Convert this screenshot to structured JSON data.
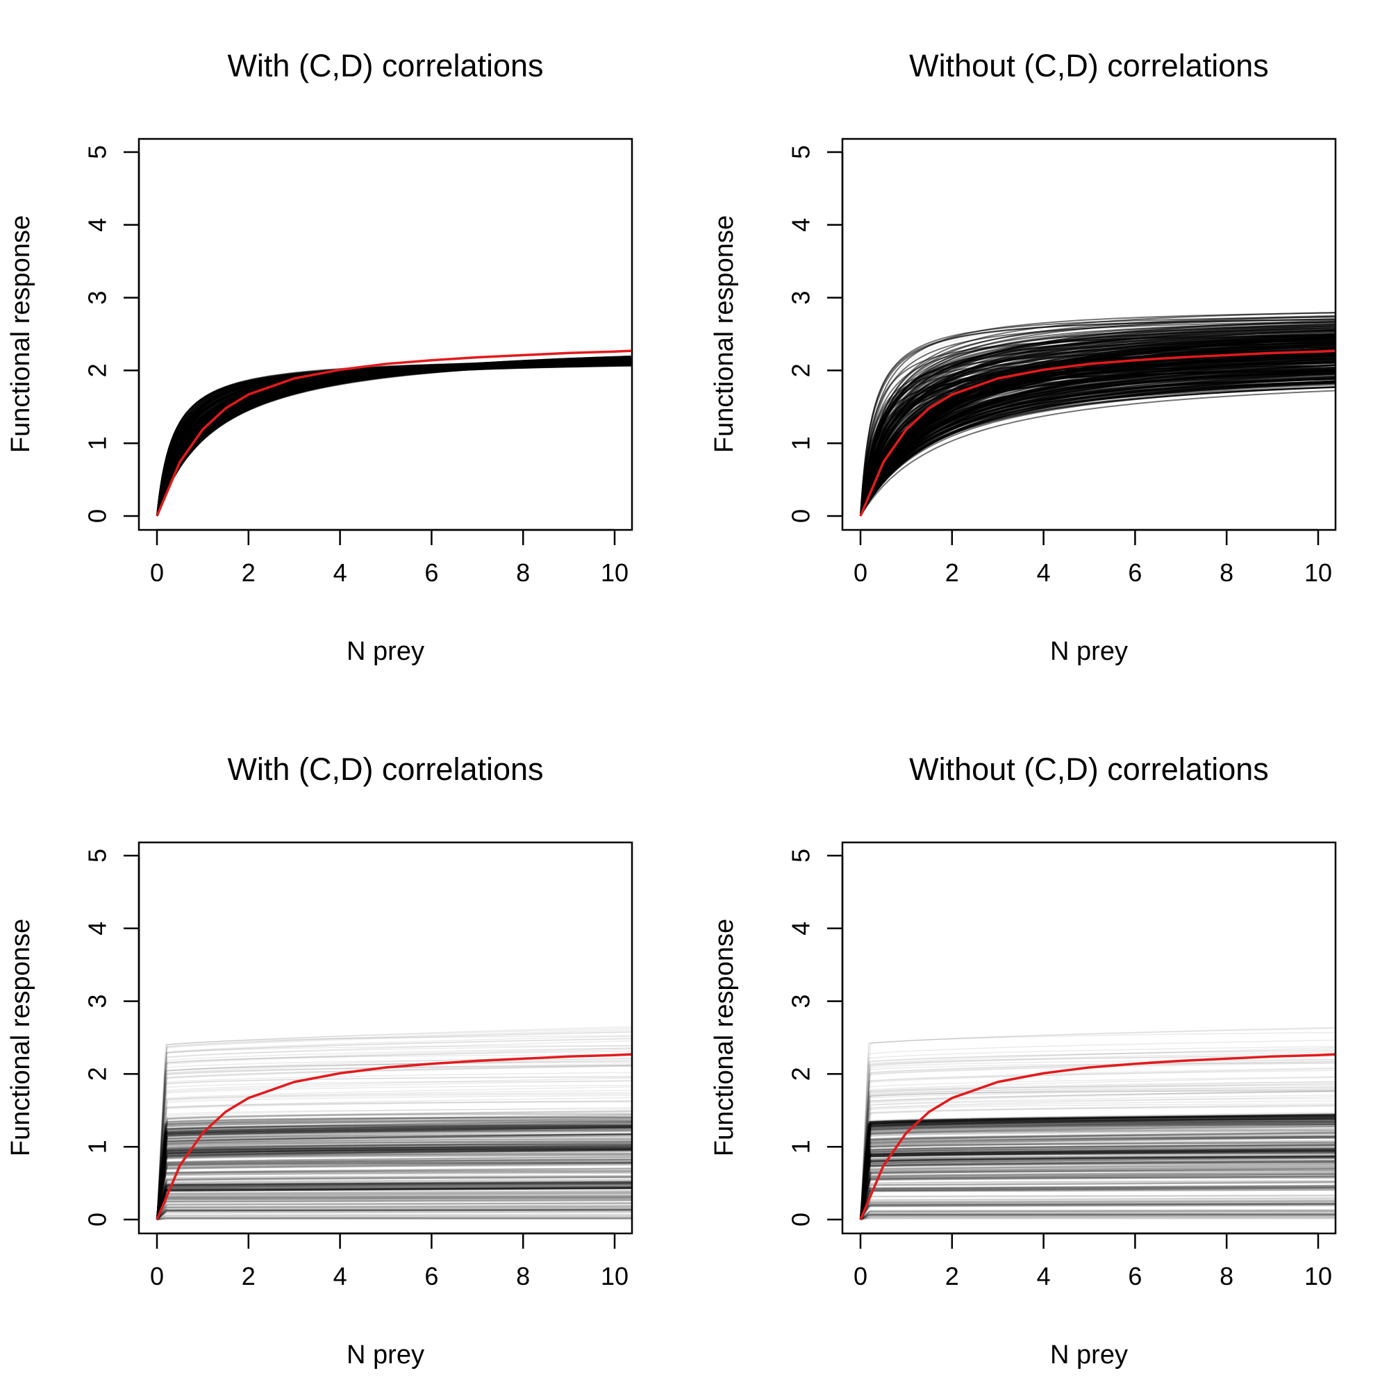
{
  "chart_data": [
    {
      "type": "line",
      "title": "With (C,D) correlations",
      "xlabel": "N prey",
      "ylabel": "Functional response",
      "xlim": [
        0,
        10.4
      ],
      "ylim": [
        0,
        5
      ],
      "xticks": [
        "0",
        "2",
        "4",
        "6",
        "8",
        "10"
      ],
      "yticks": [
        "0",
        "1",
        "2",
        "3",
        "4",
        "5"
      ],
      "mean_curve": {
        "name": "mean",
        "color": "#e31a1c",
        "x": [
          0,
          0.5,
          1,
          1.5,
          2,
          3,
          4,
          5,
          6,
          7,
          8,
          9,
          10,
          10.4
        ],
        "y": [
          0,
          0.74,
          1.19,
          1.48,
          1.67,
          1.89,
          2.01,
          2.09,
          2.14,
          2.18,
          2.21,
          2.24,
          2.26,
          2.27
        ]
      },
      "simulated_band": {
        "curve_type": "type-II saturating",
        "asymptote_range": [
          2.1,
          2.5
        ],
        "half_saturation_range": [
          0.35,
          1.3
        ],
        "n_curves_drawn": 260,
        "correlated": true
      }
    },
    {
      "type": "line",
      "title": "Without (C,D) correlations",
      "xlabel": "N prey",
      "ylabel": "Functional response",
      "xlim": [
        0,
        10.4
      ],
      "ylim": [
        0,
        5
      ],
      "xticks": [
        "0",
        "2",
        "4",
        "6",
        "8",
        "10"
      ],
      "yticks": [
        "0",
        "1",
        "2",
        "3",
        "4",
        "5"
      ],
      "mean_curve": {
        "name": "mean",
        "color": "#e31a1c",
        "x": [
          0,
          0.5,
          1,
          1.5,
          2,
          3,
          4,
          5,
          6,
          7,
          8,
          9,
          10,
          10.4
        ],
        "y": [
          0,
          0.74,
          1.19,
          1.48,
          1.67,
          1.89,
          2.01,
          2.09,
          2.14,
          2.18,
          2.21,
          2.24,
          2.26,
          2.27
        ]
      },
      "simulated_band": {
        "curve_type": "type-II saturating",
        "asymptote_range": [
          1.95,
          3.0
        ],
        "half_saturation_range": [
          0.25,
          2.0
        ],
        "n_curves_drawn": 260,
        "correlated": false
      }
    },
    {
      "type": "line",
      "title": "With (C,D) correlations",
      "xlabel": "N prey",
      "ylabel": "Functional response",
      "xlim": [
        0,
        10.4
      ],
      "ylim": [
        0,
        5
      ],
      "xticks": [
        "0",
        "2",
        "4",
        "6",
        "8",
        "10"
      ],
      "yticks": [
        "0",
        "1",
        "2",
        "3",
        "4",
        "5"
      ],
      "mean_curve": {
        "name": "mean",
        "color": "#e31a1c",
        "x": [
          0,
          0.5,
          1,
          1.5,
          2,
          3,
          4,
          5,
          6,
          7,
          8,
          9,
          10,
          10.4
        ],
        "y": [
          0,
          0.74,
          1.19,
          1.48,
          1.67,
          1.89,
          2.01,
          2.09,
          2.14,
          2.18,
          2.21,
          2.24,
          2.26,
          2.27
        ]
      },
      "simulated_band": {
        "curve_type": "near step",
        "dense_level_range": [
          0.0,
          1.45
        ],
        "sparse_level_range": [
          1.45,
          2.6
        ],
        "dense_levels": [
          0.45,
          0.95,
          1.25
        ],
        "rise_end_x": 0.2,
        "n_curves_drawn": 220,
        "correlated": true
      }
    },
    {
      "type": "line",
      "title": "Without (C,D) correlations",
      "xlabel": "N prey",
      "ylabel": "Functional response",
      "xlim": [
        0,
        10.4
      ],
      "ylim": [
        0,
        5
      ],
      "xticks": [
        "0",
        "2",
        "4",
        "6",
        "8",
        "10"
      ],
      "yticks": [
        "0",
        "1",
        "2",
        "3",
        "4",
        "5"
      ],
      "mean_curve": {
        "name": "mean",
        "color": "#e31a1c",
        "x": [
          0,
          0.5,
          1,
          1.5,
          2,
          3,
          4,
          5,
          6,
          7,
          8,
          9,
          10,
          10.4
        ],
        "y": [
          0,
          0.74,
          1.19,
          1.48,
          1.67,
          1.89,
          2.01,
          2.09,
          2.14,
          2.18,
          2.21,
          2.24,
          2.26,
          2.27
        ]
      },
      "simulated_band": {
        "curve_type": "near step",
        "dense_level_range": [
          0.0,
          1.4
        ],
        "sparse_level_range": [
          1.4,
          2.65
        ],
        "dense_levels": [
          0.95,
          1.35
        ],
        "rise_end_x": 0.2,
        "n_curves_drawn": 220,
        "correlated": false
      }
    }
  ]
}
